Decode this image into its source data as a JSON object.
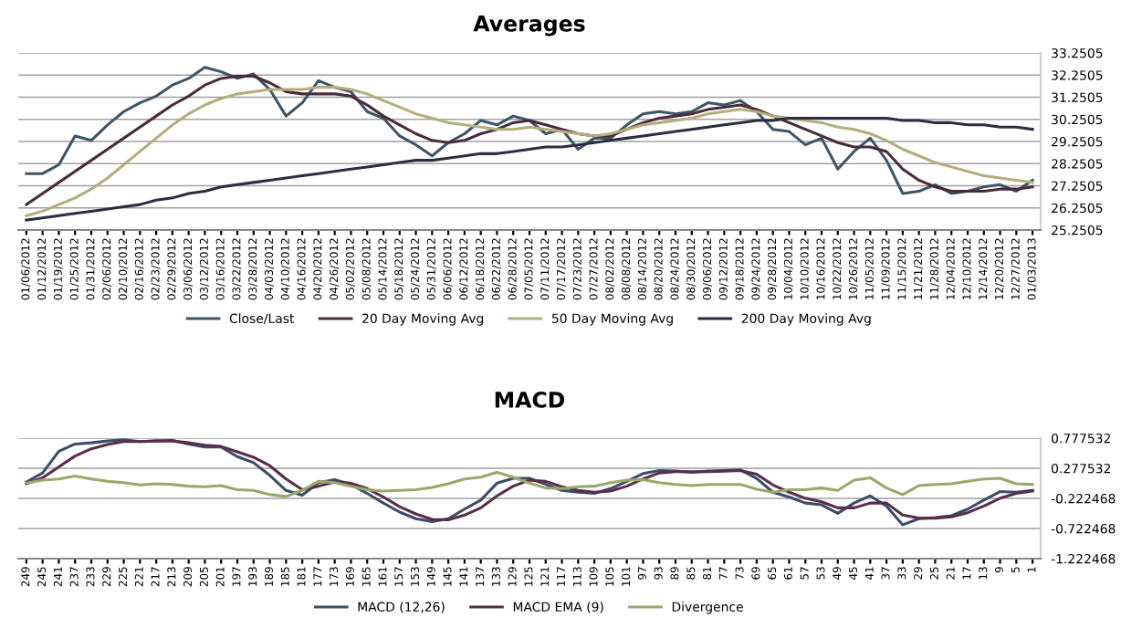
{
  "chart_data": [
    {
      "type": "line",
      "title": "Averages",
      "categories": [
        "01/06/2012",
        "01/12/2012",
        "01/19/2012",
        "01/25/2012",
        "01/31/2012",
        "02/06/2012",
        "02/10/2012",
        "02/16/2012",
        "02/23/2012",
        "02/29/2012",
        "03/06/2012",
        "03/12/2012",
        "03/16/2012",
        "03/22/2012",
        "03/28/2012",
        "04/03/2012",
        "04/10/2012",
        "04/16/2012",
        "04/20/2012",
        "04/26/2012",
        "05/02/2012",
        "05/08/2012",
        "05/14/2012",
        "05/18/2012",
        "05/24/2012",
        "05/31/2012",
        "06/06/2012",
        "06/12/2012",
        "06/18/2012",
        "06/22/2012",
        "06/28/2012",
        "07/05/2012",
        "07/11/2012",
        "07/17/2012",
        "07/23/2012",
        "07/27/2012",
        "08/02/2012",
        "08/08/2012",
        "08/14/2012",
        "08/20/2012",
        "08/24/2012",
        "08/30/2012",
        "09/06/2012",
        "09/12/2012",
        "09/18/2012",
        "09/24/2012",
        "09/28/2012",
        "10/04/2012",
        "10/10/2012",
        "10/16/2012",
        "10/22/2012",
        "10/26/2012",
        "11/05/2012",
        "11/09/2012",
        "11/15/2012",
        "11/21/2012",
        "11/28/2012",
        "12/04/2012",
        "12/10/2012",
        "12/14/2012",
        "12/20/2012",
        "12/27/2012",
        "01/03/2013"
      ],
      "series": [
        {
          "name": "Close/Last",
          "color": "#3e5566",
          "values": [
            27.8,
            27.8,
            28.2,
            29.5,
            29.3,
            30.0,
            30.6,
            31.0,
            31.3,
            31.8,
            32.1,
            32.6,
            32.4,
            32.1,
            32.3,
            31.6,
            30.4,
            31.0,
            32.0,
            31.7,
            31.5,
            30.6,
            30.3,
            29.5,
            29.1,
            28.6,
            29.2,
            29.6,
            30.2,
            30.0,
            30.4,
            30.2,
            29.6,
            29.8,
            28.9,
            29.4,
            29.4,
            30.0,
            30.5,
            30.6,
            30.5,
            30.6,
            31.0,
            30.9,
            31.1,
            30.6,
            29.8,
            29.7,
            29.1,
            29.4,
            28.0,
            28.8,
            29.4,
            28.4,
            26.9,
            27.0,
            27.3,
            26.9,
            27.0,
            27.2,
            27.3,
            27.0,
            27.5
          ]
        },
        {
          "name": "20 Day Moving Avg",
          "color": "#4a2b3c",
          "values": [
            26.4,
            26.9,
            27.4,
            27.9,
            28.4,
            28.9,
            29.4,
            29.9,
            30.4,
            30.9,
            31.3,
            31.8,
            32.1,
            32.2,
            32.2,
            31.9,
            31.5,
            31.4,
            31.4,
            31.4,
            31.3,
            30.9,
            30.4,
            30.0,
            29.6,
            29.3,
            29.2,
            29.3,
            29.6,
            29.8,
            30.1,
            30.2,
            30.0,
            29.8,
            29.6,
            29.5,
            29.5,
            29.8,
            30.1,
            30.3,
            30.4,
            30.5,
            30.7,
            30.8,
            30.9,
            30.7,
            30.4,
            30.1,
            29.8,
            29.5,
            29.2,
            29.0,
            29.0,
            28.8,
            28.0,
            27.5,
            27.2,
            27.0,
            27.0,
            27.0,
            27.1,
            27.1,
            27.2
          ]
        },
        {
          "name": "50 Day Moving Avg",
          "color": "#b3ae7c",
          "values": [
            25.9,
            26.1,
            26.4,
            26.7,
            27.1,
            27.6,
            28.2,
            28.8,
            29.4,
            30.0,
            30.5,
            30.9,
            31.2,
            31.4,
            31.5,
            31.6,
            31.6,
            31.6,
            31.7,
            31.7,
            31.6,
            31.4,
            31.1,
            30.8,
            30.5,
            30.3,
            30.1,
            30.0,
            29.9,
            29.8,
            29.8,
            29.9,
            29.8,
            29.7,
            29.6,
            29.5,
            29.6,
            29.8,
            30.0,
            30.1,
            30.2,
            30.3,
            30.5,
            30.6,
            30.7,
            30.6,
            30.4,
            30.3,
            30.2,
            30.1,
            29.9,
            29.8,
            29.6,
            29.3,
            28.9,
            28.6,
            28.3,
            28.1,
            27.9,
            27.7,
            27.6,
            27.5,
            27.4
          ]
        },
        {
          "name": "200 Day Moving Avg",
          "color": "#2b2d42",
          "values": [
            25.7,
            25.8,
            25.9,
            26.0,
            26.1,
            26.2,
            26.3,
            26.4,
            26.6,
            26.7,
            26.9,
            27.0,
            27.2,
            27.3,
            27.4,
            27.5,
            27.6,
            27.7,
            27.8,
            27.9,
            28.0,
            28.1,
            28.2,
            28.3,
            28.4,
            28.4,
            28.5,
            28.6,
            28.7,
            28.7,
            28.8,
            28.9,
            29.0,
            29.0,
            29.1,
            29.2,
            29.3,
            29.4,
            29.5,
            29.6,
            29.7,
            29.8,
            29.9,
            30.0,
            30.1,
            30.2,
            30.2,
            30.3,
            30.3,
            30.3,
            30.3,
            30.3,
            30.3,
            30.3,
            30.2,
            30.2,
            30.1,
            30.1,
            30.0,
            30.0,
            29.9,
            29.9,
            29.8
          ]
        }
      ],
      "ylim": [
        25.2505,
        33.2505
      ],
      "yticks": [
        25.2505,
        26.2505,
        27.2505,
        28.2505,
        29.2505,
        30.2505,
        31.2505,
        32.2505,
        33.2505
      ],
      "grid": "y",
      "legend": "bottom"
    },
    {
      "type": "line",
      "title": "MACD",
      "categories": [
        "249",
        "245",
        "241",
        "237",
        "233",
        "229",
        "225",
        "221",
        "217",
        "213",
        "209",
        "205",
        "201",
        "197",
        "193",
        "189",
        "185",
        "181",
        "177",
        "173",
        "169",
        "165",
        "161",
        "157",
        "153",
        "149",
        "145",
        "141",
        "137",
        "133",
        "129",
        "125",
        "121",
        "117",
        "113",
        "109",
        "105",
        "101",
        "97",
        "93",
        "89",
        "85",
        "81",
        "77",
        "73",
        "69",
        "65",
        "61",
        "57",
        "53",
        "49",
        "45",
        "41",
        "37",
        "33",
        "29",
        "25",
        "21",
        "17",
        "13",
        "9",
        "5",
        "1"
      ],
      "series": [
        {
          "name": "MACD (12,26)",
          "color": "#3b4d6a",
          "values": [
            0.05,
            0.2,
            0.56,
            0.68,
            0.7,
            0.73,
            0.75,
            0.72,
            0.73,
            0.74,
            0.68,
            0.63,
            0.63,
            0.47,
            0.37,
            0.16,
            -0.09,
            -0.17,
            0.04,
            0.09,
            0.01,
            -0.14,
            -0.3,
            -0.45,
            -0.56,
            -0.61,
            -0.56,
            -0.4,
            -0.25,
            0.03,
            0.11,
            0.11,
            0.01,
            -0.09,
            -0.12,
            -0.14,
            -0.06,
            0.06,
            0.19,
            0.24,
            0.23,
            0.21,
            0.23,
            0.24,
            0.25,
            0.11,
            -0.12,
            -0.2,
            -0.3,
            -0.33,
            -0.47,
            -0.3,
            -0.18,
            -0.35,
            -0.66,
            -0.56,
            -0.54,
            -0.51,
            -0.4,
            -0.25,
            -0.11,
            -0.12,
            -0.09
          ]
        },
        {
          "name": "MACD EMA (9)",
          "color": "#5a2d4a",
          "values": [
            0.02,
            0.12,
            0.3,
            0.48,
            0.6,
            0.67,
            0.72,
            0.72,
            0.73,
            0.73,
            0.7,
            0.66,
            0.64,
            0.55,
            0.46,
            0.32,
            0.1,
            -0.08,
            -0.02,
            0.05,
            0.03,
            -0.06,
            -0.2,
            -0.36,
            -0.48,
            -0.57,
            -0.58,
            -0.5,
            -0.38,
            -0.18,
            -0.02,
            0.08,
            0.06,
            -0.03,
            -0.09,
            -0.12,
            -0.1,
            -0.02,
            0.1,
            0.2,
            0.22,
            0.22,
            0.22,
            0.23,
            0.24,
            0.18,
            0.0,
            -0.12,
            -0.22,
            -0.28,
            -0.38,
            -0.38,
            -0.3,
            -0.3,
            -0.5,
            -0.55,
            -0.55,
            -0.53,
            -0.46,
            -0.35,
            -0.22,
            -0.14,
            -0.1
          ]
        },
        {
          "name": "Divergence",
          "color": "#9aa86a",
          "values": [
            0.03,
            0.08,
            0.1,
            0.15,
            0.1,
            0.06,
            0.04,
            0.0,
            0.02,
            0.01,
            -0.02,
            -0.03,
            -0.01,
            -0.08,
            -0.09,
            -0.16,
            -0.19,
            -0.09,
            0.06,
            0.04,
            -0.02,
            -0.08,
            -0.1,
            -0.09,
            -0.08,
            -0.04,
            0.02,
            0.1,
            0.13,
            0.21,
            0.13,
            0.03,
            -0.05,
            -0.06,
            -0.03,
            -0.02,
            0.04,
            0.08,
            0.09,
            0.04,
            0.01,
            -0.01,
            0.01,
            0.01,
            0.01,
            -0.07,
            -0.12,
            -0.08,
            -0.08,
            -0.05,
            -0.09,
            0.08,
            0.12,
            -0.05,
            -0.16,
            -0.01,
            0.01,
            0.02,
            0.06,
            0.1,
            0.11,
            0.02,
            0.01
          ]
        }
      ],
      "ylim": [
        -1.222468,
        0.777532
      ],
      "yticks": [
        -1.222468,
        -0.722468,
        -0.222468,
        0.277532,
        0.777532
      ],
      "grid": "y",
      "legend": "bottom"
    }
  ]
}
